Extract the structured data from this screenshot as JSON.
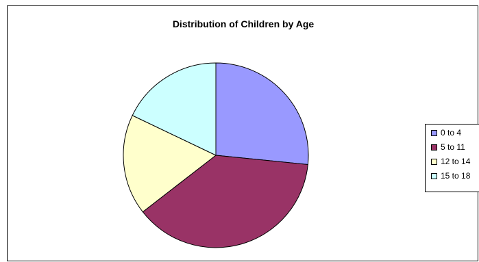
{
  "chart_data": {
    "type": "pie",
    "title": "Distribution of Children by Age",
    "categories": [
      "0 to 4",
      "5 to 11",
      "12 to 14",
      "15 to 18"
    ],
    "values": [
      26.6,
      37.9,
      17.6,
      17.9
    ],
    "colors": [
      "#9999ff",
      "#993366",
      "#ffffcc",
      "#ccffff"
    ],
    "legend_position": "right"
  }
}
